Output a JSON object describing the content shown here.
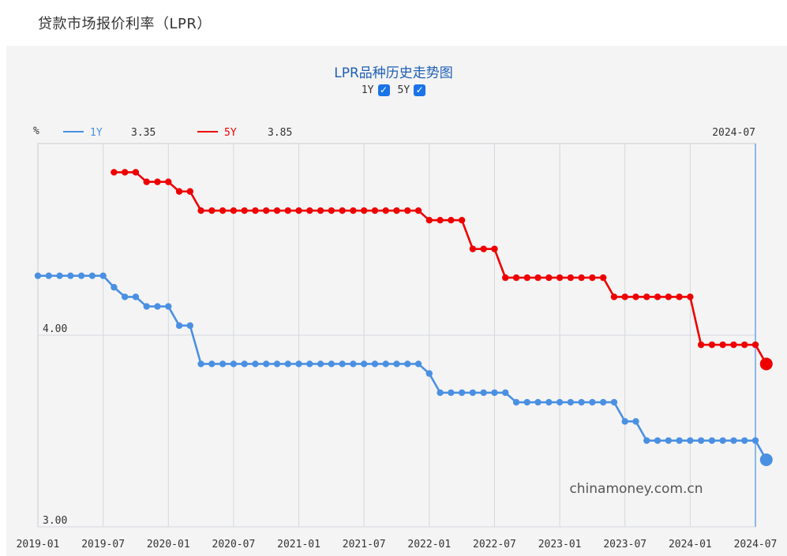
{
  "page": {
    "title": "贷款市场报价利率（LPR）"
  },
  "chart": {
    "title": "LPR品种历史走势图",
    "toggles": [
      {
        "label": "1Y",
        "checked": true,
        "check_glyph": "✓"
      },
      {
        "label": "5Y",
        "checked": true,
        "check_glyph": "✓"
      }
    ],
    "y_unit": "%",
    "cursor_date": "2024-07",
    "watermark": "chinamoney.com.cn",
    "legend": [
      {
        "name": "1Y",
        "value": "3.35",
        "color": "#4a90e2"
      },
      {
        "name": "5Y",
        "value": "3.85",
        "color": "#ee0000"
      }
    ]
  },
  "chart_data": {
    "type": "line",
    "xlabel": "",
    "ylabel": "%",
    "ylim": [
      3.0,
      5.0
    ],
    "y_ticks": [
      3.0,
      4.0
    ],
    "y_tick_labels": [
      "3.00",
      "4.00"
    ],
    "x_tick_labels": [
      "2019-01",
      "2019-07",
      "2020-01",
      "2020-07",
      "2021-01",
      "2021-07",
      "2022-01",
      "2022-07",
      "2023-01",
      "2023-07",
      "2024-01",
      "2024-07"
    ],
    "grid": true,
    "series": [
      {
        "name": "1Y",
        "color": "#4a90e2",
        "start": "2019-01",
        "values": [
          4.31,
          4.31,
          4.31,
          4.31,
          4.31,
          4.31,
          4.31,
          4.25,
          4.2,
          4.2,
          4.15,
          4.15,
          4.15,
          4.05,
          4.05,
          3.85,
          3.85,
          3.85,
          3.85,
          3.85,
          3.85,
          3.85,
          3.85,
          3.85,
          3.85,
          3.85,
          3.85,
          3.85,
          3.85,
          3.85,
          3.85,
          3.85,
          3.85,
          3.85,
          3.85,
          3.85,
          3.8,
          3.7,
          3.7,
          3.7,
          3.7,
          3.7,
          3.7,
          3.7,
          3.65,
          3.65,
          3.65,
          3.65,
          3.65,
          3.65,
          3.65,
          3.65,
          3.65,
          3.65,
          3.55,
          3.55,
          3.45,
          3.45,
          3.45,
          3.45,
          3.45,
          3.45,
          3.45,
          3.45,
          3.45,
          3.45,
          3.45,
          3.35
        ]
      },
      {
        "name": "5Y",
        "color": "#ee0000",
        "start": "2019-08",
        "values": [
          4.85,
          4.85,
          4.85,
          4.8,
          4.8,
          4.8,
          4.75,
          4.75,
          4.65,
          4.65,
          4.65,
          4.65,
          4.65,
          4.65,
          4.65,
          4.65,
          4.65,
          4.65,
          4.65,
          4.65,
          4.65,
          4.65,
          4.65,
          4.65,
          4.65,
          4.65,
          4.65,
          4.65,
          4.65,
          4.6,
          4.6,
          4.6,
          4.6,
          4.45,
          4.45,
          4.45,
          4.3,
          4.3,
          4.3,
          4.3,
          4.3,
          4.3,
          4.3,
          4.3,
          4.3,
          4.3,
          4.2,
          4.2,
          4.2,
          4.2,
          4.2,
          4.2,
          4.2,
          4.2,
          3.95,
          3.95,
          3.95,
          3.95,
          3.95,
          3.95,
          3.85
        ]
      }
    ]
  }
}
